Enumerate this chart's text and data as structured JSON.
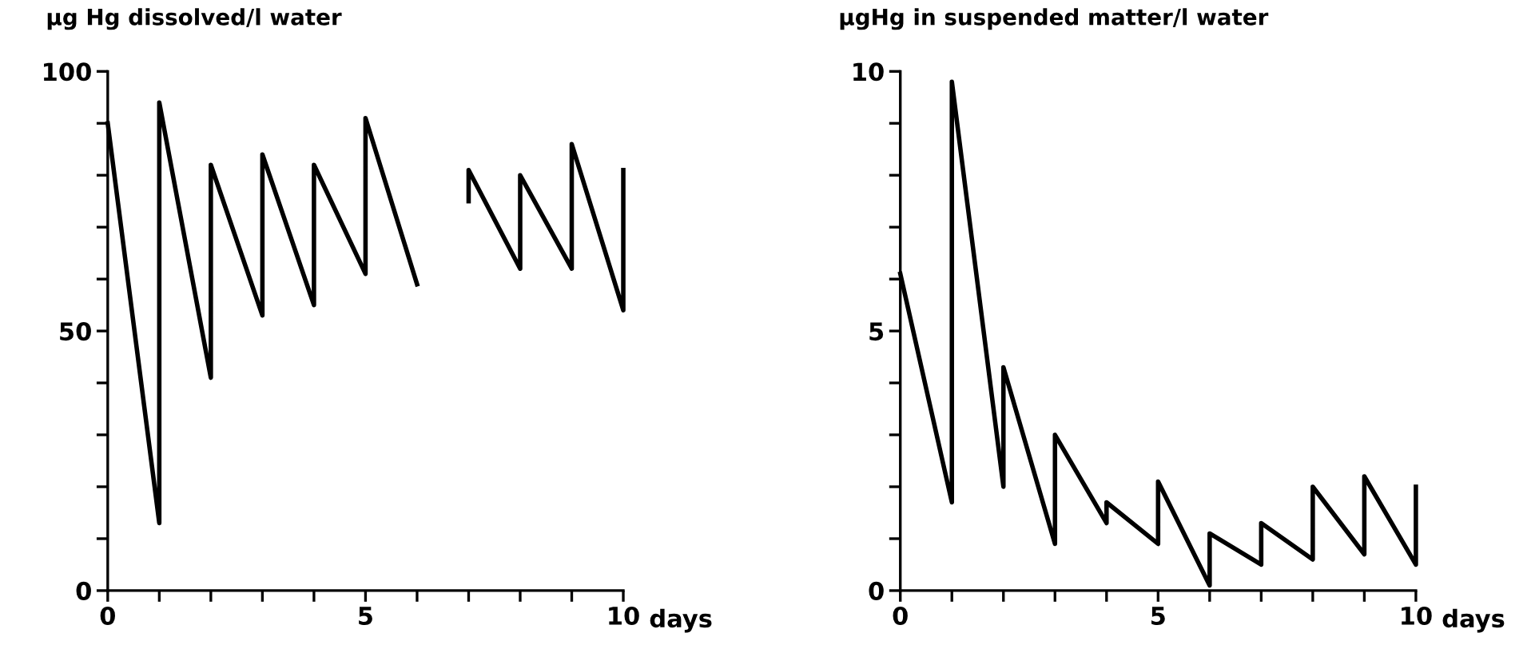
{
  "chart_data": [
    {
      "type": "line",
      "ylabel": "µg Hg dissolved/l water",
      "xlabel": "days",
      "series": [
        {
          "color": "#000000",
          "x": [
            0,
            1,
            1,
            2,
            2,
            3,
            3,
            4,
            4,
            5,
            5,
            6,
            6.5,
            7,
            7,
            8,
            8,
            9,
            9,
            10,
            10
          ],
          "values": [
            90,
            13,
            94,
            41,
            82,
            53,
            84,
            55,
            82,
            61,
            91,
            59,
            null,
            75,
            81,
            62,
            80,
            62,
            86,
            54,
            81
          ]
        }
      ],
      "xlim": [
        0,
        10
      ],
      "ylim": [
        0,
        100
      ],
      "xticks": [
        0,
        {
          "value": 1,
          "label": null
        },
        {
          "value": 2,
          "label": null
        },
        {
          "value": 3,
          "label": null
        },
        {
          "value": 4,
          "label": null
        },
        5,
        {
          "value": 6,
          "label": null
        },
        {
          "value": 7,
          "label": null
        },
        {
          "value": 8,
          "label": null
        },
        {
          "value": 9,
          "label": null
        },
        10
      ],
      "yticks": [
        0,
        {
          "value": 10,
          "label": null
        },
        {
          "value": 20,
          "label": null
        },
        {
          "value": 30,
          "label": null
        },
        {
          "value": 40,
          "label": null
        },
        50,
        {
          "value": 60,
          "label": null
        },
        {
          "value": 70,
          "label": null
        },
        {
          "value": 80,
          "label": null
        },
        {
          "value": 90,
          "label": null
        },
        100
      ],
      "grid": false,
      "legend": false,
      "marker": "none",
      "line_style": "solid"
    },
    {
      "type": "line",
      "ylabel": "µgHg in suspended matter/l water",
      "xlabel": "days",
      "series": [
        {
          "color": "#000000",
          "x": [
            0,
            1,
            1,
            2,
            2,
            3,
            3,
            4,
            4,
            5,
            5,
            6,
            6,
            7,
            7,
            8,
            8,
            9,
            9,
            10,
            10
          ],
          "values": [
            6.1,
            1.7,
            9.8,
            2.0,
            4.3,
            0.9,
            3.0,
            1.3,
            1.7,
            0.9,
            2.1,
            0.1,
            1.1,
            0.5,
            1.3,
            0.6,
            2.0,
            0.7,
            2.2,
            0.5,
            2.0
          ]
        }
      ],
      "xlim": [
        0,
        10
      ],
      "ylim": [
        0,
        10
      ],
      "xticks": [
        0,
        {
          "value": 1,
          "label": null
        },
        {
          "value": 2,
          "label": null
        },
        {
          "value": 3,
          "label": null
        },
        {
          "value": 4,
          "label": null
        },
        5,
        {
          "value": 6,
          "label": null
        },
        {
          "value": 7,
          "label": null
        },
        {
          "value": 8,
          "label": null
        },
        {
          "value": 9,
          "label": null
        },
        10
      ],
      "yticks": [
        0,
        {
          "value": 1,
          "label": null
        },
        {
          "value": 2,
          "label": null
        },
        {
          "value": 3,
          "label": null
        },
        {
          "value": 4,
          "label": null
        },
        5,
        {
          "value": 6,
          "label": null
        },
        {
          "value": 7,
          "label": null
        },
        {
          "value": 8,
          "label": null
        },
        {
          "value": 9,
          "label": null
        },
        10
      ],
      "grid": false,
      "legend": false,
      "marker": "none",
      "line_style": "solid"
    }
  ]
}
